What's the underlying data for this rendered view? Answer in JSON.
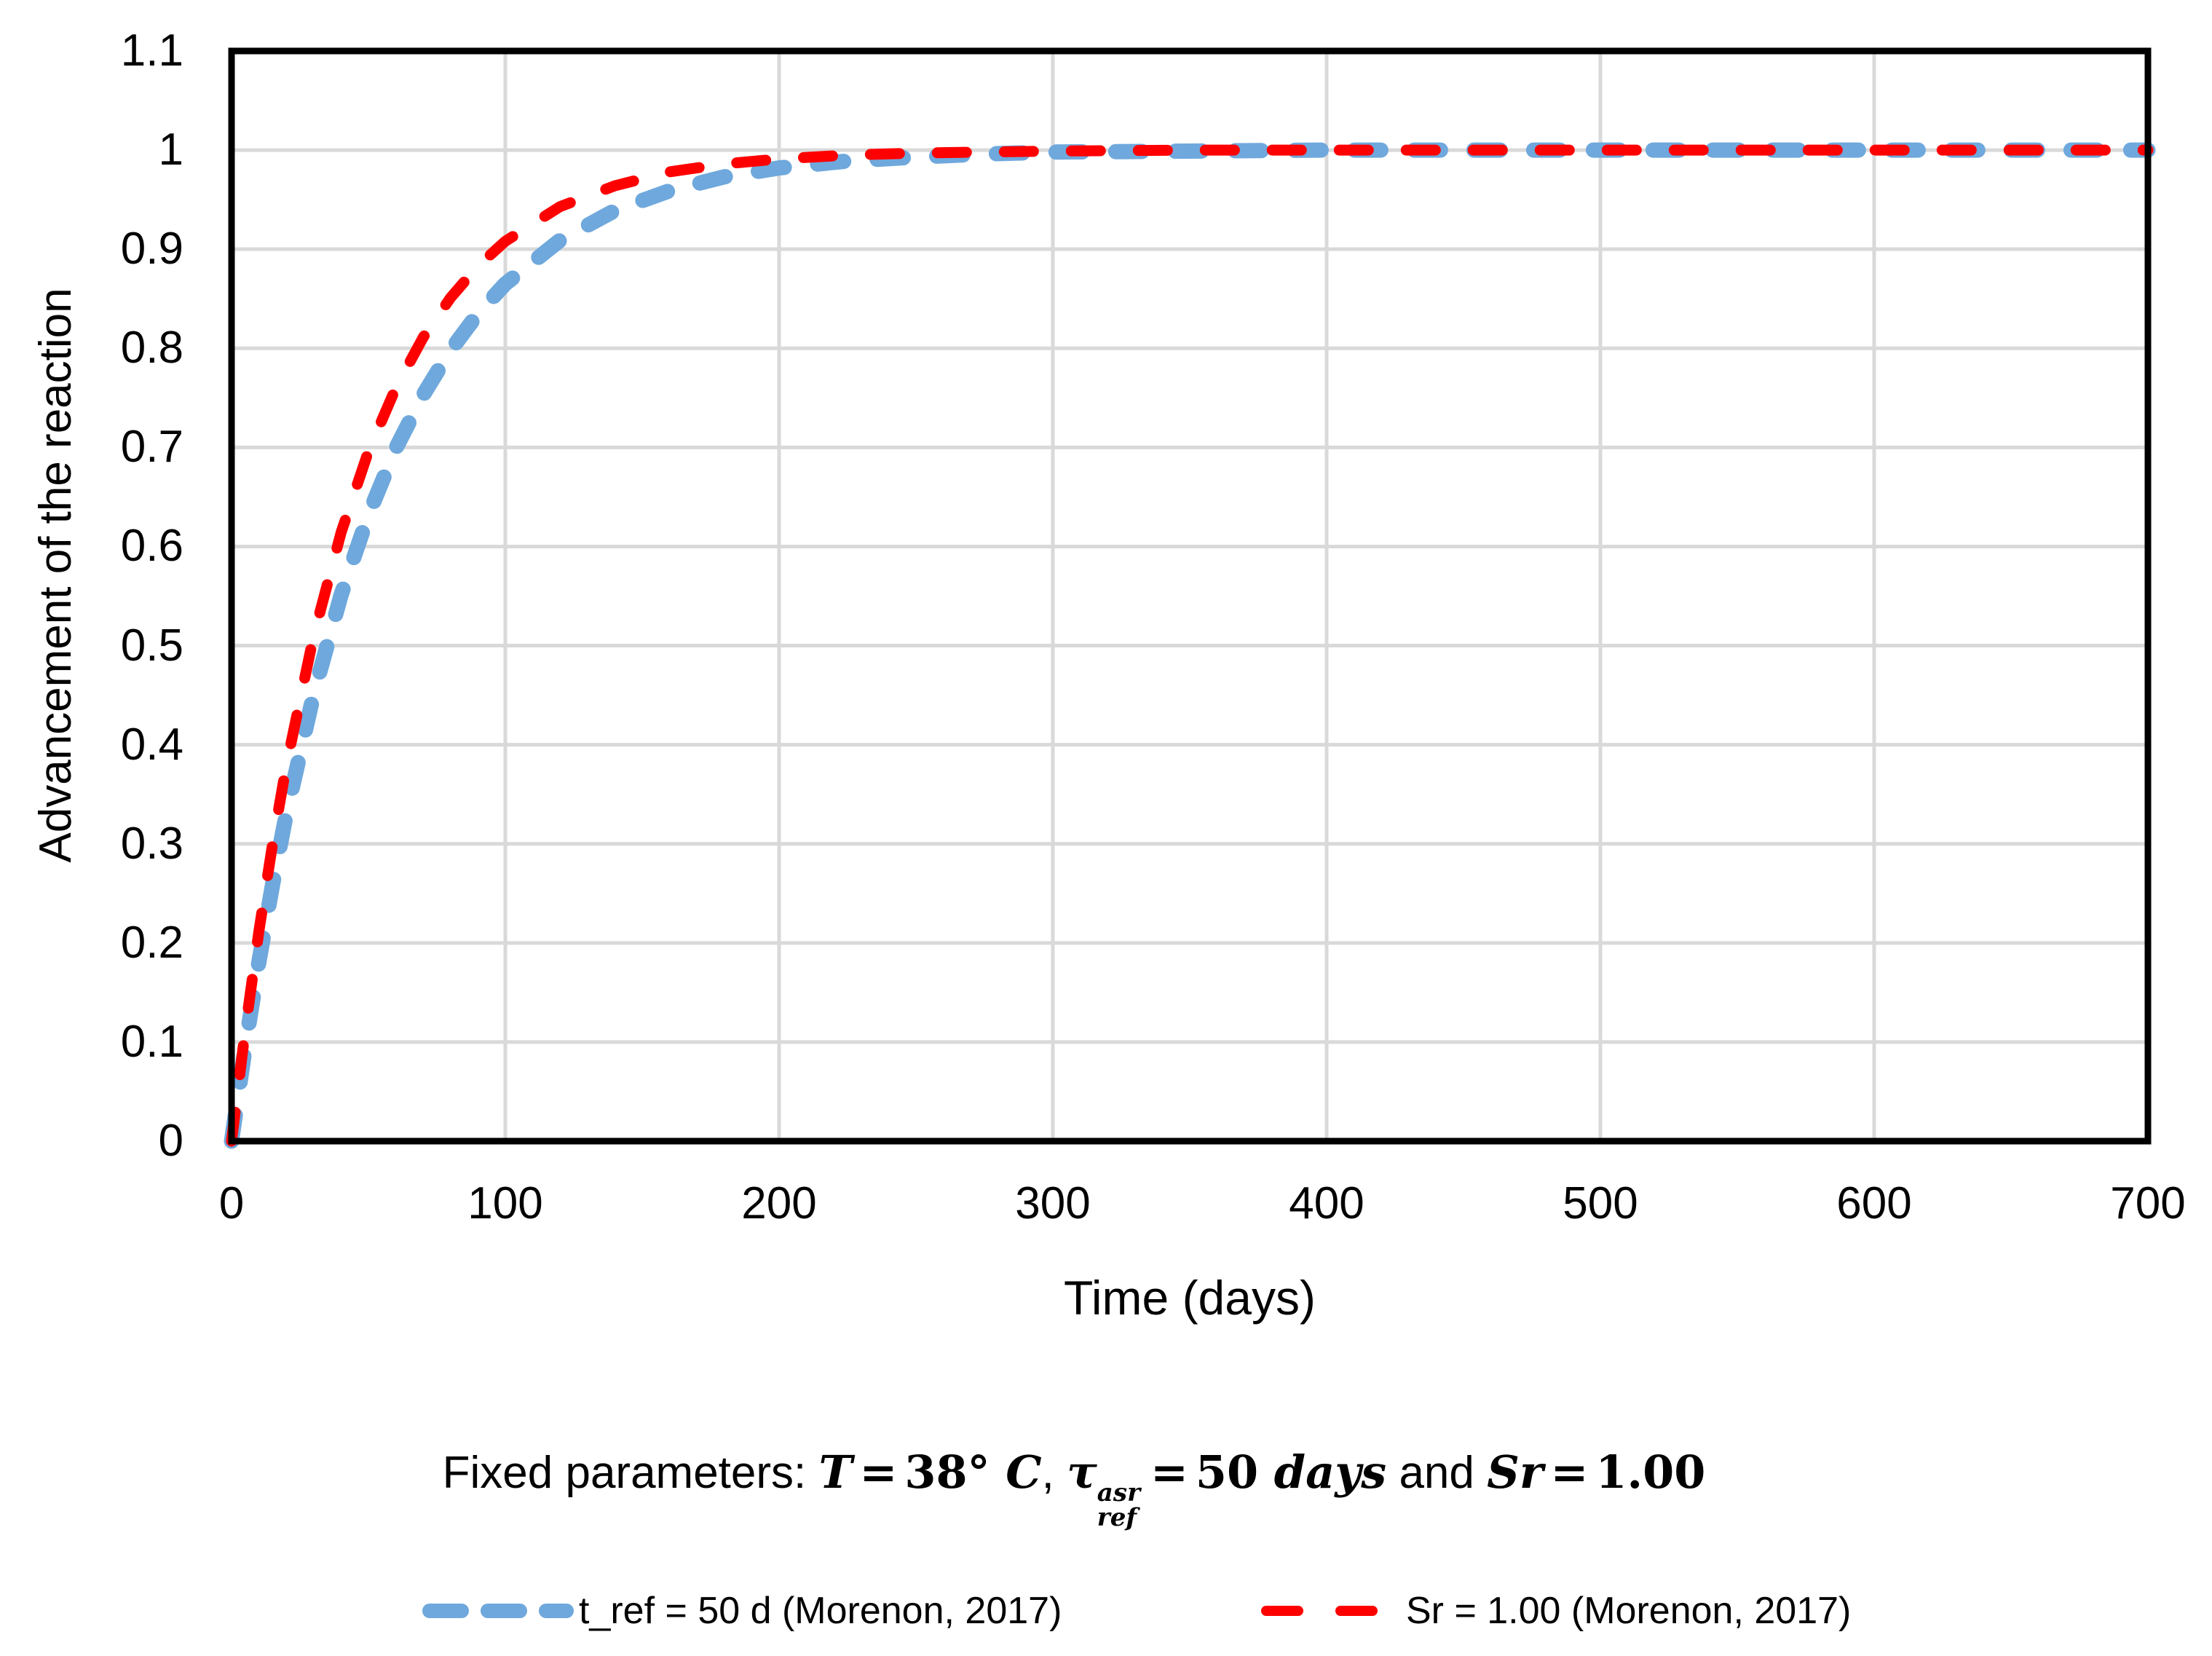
{
  "chart_data": {
    "type": "line",
    "title": "",
    "xlabel": "Time (days)",
    "ylabel": "Advancement of the reaction",
    "xlim": [
      0,
      700
    ],
    "ylim": [
      0,
      1.1
    ],
    "x_ticks": [
      "0",
      "100",
      "200",
      "300",
      "400",
      "500",
      "600",
      "700"
    ],
    "y_ticks": [
      "0",
      "0.1",
      "0.2",
      "0.3",
      "0.4",
      "0.5",
      "0.6",
      "0.7",
      "0.8",
      "0.9",
      "1",
      "1.1"
    ],
    "grid": true,
    "legend_position": "bottom",
    "x": [
      0,
      5,
      10,
      15,
      20,
      30,
      40,
      50,
      60,
      70,
      80,
      90,
      100,
      120,
      140,
      160,
      180,
      200,
      225,
      250,
      275,
      300,
      350,
      400,
      450,
      500,
      550,
      600,
      650,
      700
    ],
    "series": [
      {
        "name": "t_ref = 50 d (Morenon, 2017)",
        "color": "#6FA8DC",
        "line_width": 21,
        "dash_pattern": [
          36,
          46
        ],
        "values": [
          0,
          0.095,
          0.181,
          0.259,
          0.33,
          0.451,
          0.551,
          0.632,
          0.699,
          0.753,
          0.798,
          0.835,
          0.865,
          0.909,
          0.939,
          0.959,
          0.973,
          0.982,
          0.989,
          0.993,
          0.996,
          0.998,
          0.999,
          1,
          1,
          1,
          1,
          1,
          1,
          1
        ]
      },
      {
        "name": "Sr = 1.00 (Morenon, 2017)",
        "color": "#FF0000",
        "line_width": 15,
        "dash_pattern": [
          40,
          52
        ],
        "values": [
          0,
          0.112,
          0.212,
          0.3,
          0.379,
          0.51,
          0.614,
          0.696,
          0.76,
          0.811,
          0.851,
          0.883,
          0.908,
          0.943,
          0.964,
          0.978,
          0.986,
          0.991,
          0.995,
          0.997,
          0.998,
          0.999,
          1,
          1,
          1,
          1,
          1,
          1,
          1,
          1
        ]
      }
    ]
  },
  "axes": {
    "x_title": "Time (days)",
    "y_title": "Advancement of the reaction"
  },
  "caption": {
    "prefix": "Fixed parameters: ",
    "T": "T",
    "eq1": "=",
    "v38": "38° ",
    "C": "C",
    "comma": ", ",
    "tau": "τ",
    "tau_sup": "asr",
    "tau_sub": "ref",
    "eq2": "=",
    "n50": "50 ",
    "days": "days",
    "and": " and ",
    "Sr": "Sr",
    "eq3": "=",
    "v100": "1.00"
  },
  "legend": {
    "items": [
      {
        "label": "t_ref = 50 d (Morenon, 2017)",
        "color": "#6FA8DC"
      },
      {
        "label": "Sr = 1.00 (Morenon, 2017)",
        "color": "#FF0000"
      }
    ]
  },
  "colors": {
    "background": "#FFFFFF",
    "grid": "#D9D9D9",
    "axis": "#000000",
    "text": "#000000",
    "series_blue": "#6FA8DC",
    "series_red": "#FF0000"
  }
}
